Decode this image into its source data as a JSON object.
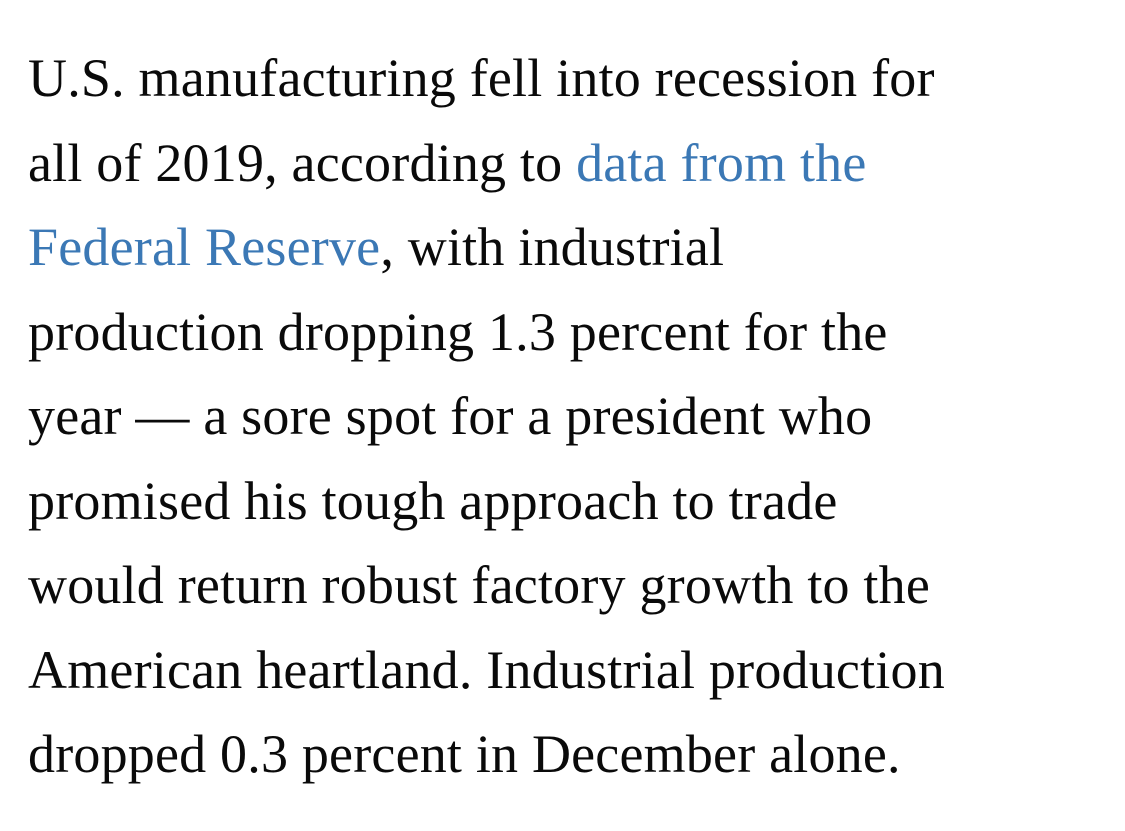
{
  "colors": {
    "background": "#ffffff",
    "text": "#0a0a0a",
    "link": "#3b78b5"
  },
  "paragraph": {
    "full_text": "U.S. manufacturing fell into recession for all of 2019, according to data from the Federal Reserve, with industrial production dropping 1.3 percent for the year — a sore spot for a president who promised his tough approach to trade would return robust factory growth to the American heartland. Industrial production dropped 0.3 percent in December alone.",
    "link_text": "data from the Federal Reserve",
    "lines": [
      {
        "pre": "U.S. manufacturing fell into recession for",
        "link": "",
        "post": ""
      },
      {
        "pre": "all of 2019, according to ",
        "link": "data from the",
        "post": ""
      },
      {
        "pre": "",
        "link": "Federal Reserve",
        "post": ", with industrial"
      },
      {
        "pre": "production dropping 1.3 percent for the",
        "link": "",
        "post": ""
      },
      {
        "pre": "year — a sore spot for a president who",
        "link": "",
        "post": ""
      },
      {
        "pre": "promised his tough approach to trade",
        "link": "",
        "post": ""
      },
      {
        "pre": "would return robust factory growth to the",
        "link": "",
        "post": ""
      },
      {
        "pre": "American heartland. Industrial production",
        "link": "",
        "post": ""
      },
      {
        "pre": "dropped 0.3 percent in December alone.",
        "link": "",
        "post": ""
      }
    ]
  }
}
